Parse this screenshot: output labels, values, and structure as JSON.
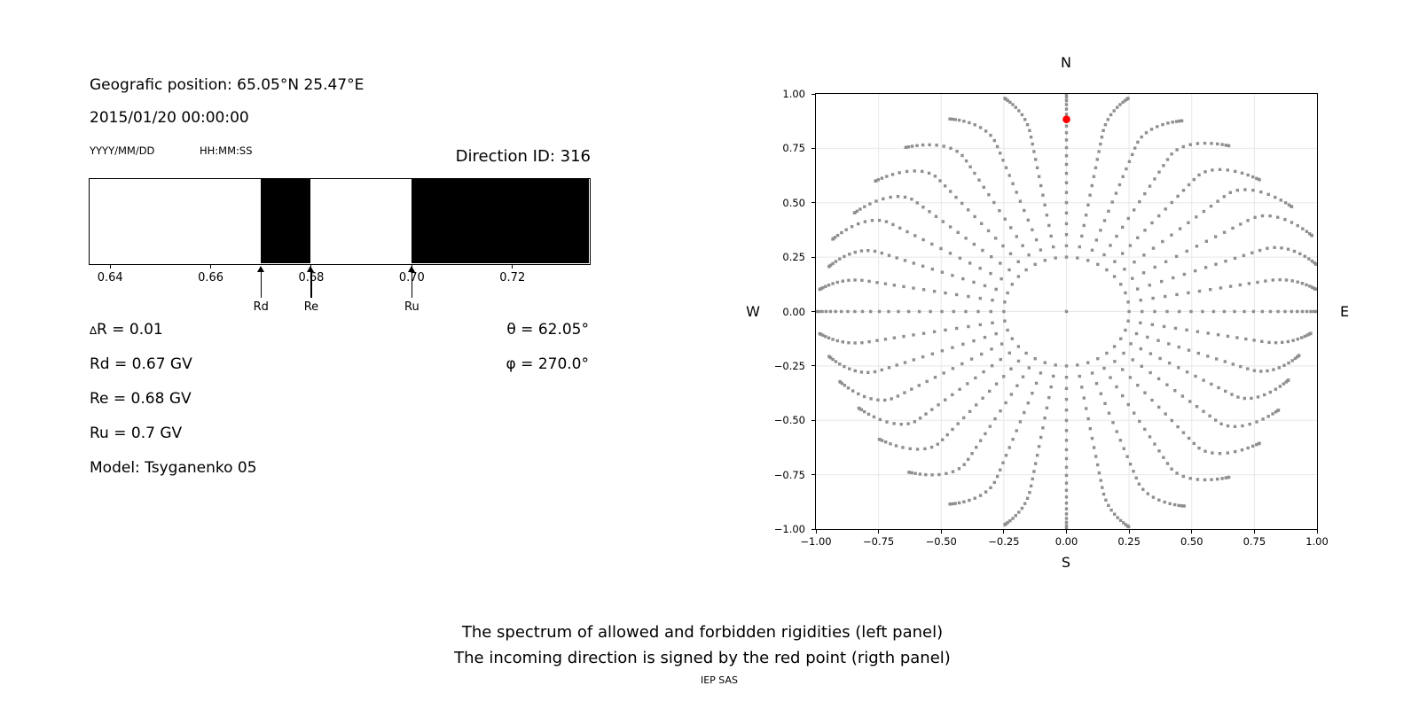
{
  "left_panel": {
    "geo_position": "Geografic position: 65.05°N 25.47°E",
    "datetime": "2015/01/20 00:00:00",
    "date_format": "YYYY/MM/DD",
    "time_format": "HH:MM:SS",
    "direction_id": "Direction ID: 316",
    "delta_r": {
      "sym": "∆",
      "rest": "R = 0.01"
    },
    "rd_line": "Rd = 0.67 GV",
    "re_line": "Re = 0.68 GV",
    "ru_line": "Ru = 0.7 GV",
    "model_line": "Model: Tsyganenko 05",
    "theta": {
      "sym": "θ",
      "rest": " = 62.05°"
    },
    "phi": {
      "sym": "φ",
      "rest": " = 270.0°"
    }
  },
  "right_panel": {
    "compass": {
      "top": "N",
      "bottom": "S",
      "left": "W",
      "right": "E"
    }
  },
  "caption": {
    "line1": "The spectrum of allowed and forbidden rigidities (left panel)",
    "line2": "The incoming direction is signed by the red point (rigth panel)",
    "credit": "IEP SAS"
  },
  "chart_data": [
    {
      "type": "bar",
      "subtype": "allowed-forbidden-rigidity-spectrum",
      "xlim": [
        0.636,
        0.7353
      ],
      "xticks": [
        0.64,
        0.66,
        0.68,
        0.7,
        0.72
      ],
      "xtick_labels": [
        "0.64",
        "0.66",
        "0.68",
        "0.70",
        "0.72"
      ],
      "allowed_bands": [
        [
          0.636,
          0.67
        ],
        [
          0.68,
          0.7
        ]
      ],
      "forbidden_bands": [
        [
          0.67,
          0.68
        ],
        [
          0.7,
          0.7353
        ]
      ],
      "band_color": "#000000",
      "markers": [
        {
          "label": "Rd",
          "value": 0.67
        },
        {
          "label": "Re",
          "value": 0.68
        },
        {
          "label": "Ru",
          "value": 0.7
        }
      ]
    },
    {
      "type": "scatter",
      "subtype": "incoming-directions",
      "xlim": [
        -1.0,
        1.0
      ],
      "ylim": [
        -1.0,
        1.0
      ],
      "xticks": [
        -1.0,
        -0.75,
        -0.5,
        -0.25,
        0.0,
        0.25,
        0.5,
        0.75,
        1.0
      ],
      "xtick_labels": [
        "−1.00",
        "−0.75",
        "−0.50",
        "−0.25",
        "0.00",
        "0.25",
        "0.50",
        "0.75",
        "1.00"
      ],
      "yticks": [
        1.0,
        0.75,
        0.5,
        0.25,
        0.0,
        -0.25,
        -0.5,
        -0.75,
        -1.0
      ],
      "ytick_labels": [
        "1.00",
        "0.75",
        "0.50",
        "0.25",
        "0.00",
        "−0.25",
        "−0.50",
        "−0.75",
        "−1.00"
      ],
      "grid": true,
      "grid_color": "#e8e8e8",
      "dot_color": "#8f8f8f",
      "red_color": "#ff0000",
      "red_point": {
        "x": 0.0,
        "y": 0.883
      },
      "spokes": {
        "count": 36,
        "azimuth_step_deg": 10,
        "zenith_min_deg": 15,
        "zenith_max_deg": 90,
        "zenith_step_deg": 3,
        "ring_radius": 0.25,
        "center_dot": true,
        "bend_amplitude_deg": 12,
        "tip_radii": [
          1.02,
          1.01,
          0.99,
          1.0,
          0.98,
          1.02,
          1.04,
          1.02,
          1.0,
          1.01,
          0.98,
          0.95,
          0.94,
          0.96,
          0.98,
          1.0,
          1.01,
          1.02,
          1.02,
          1.01,
          1.0,
          0.97,
          0.95,
          0.94,
          0.96,
          0.97,
          0.99,
          1.01,
          0.99,
          0.97,
          0.99,
          0.96,
          0.97,
          0.99,
          1.0,
          1.01
        ]
      }
    }
  ]
}
